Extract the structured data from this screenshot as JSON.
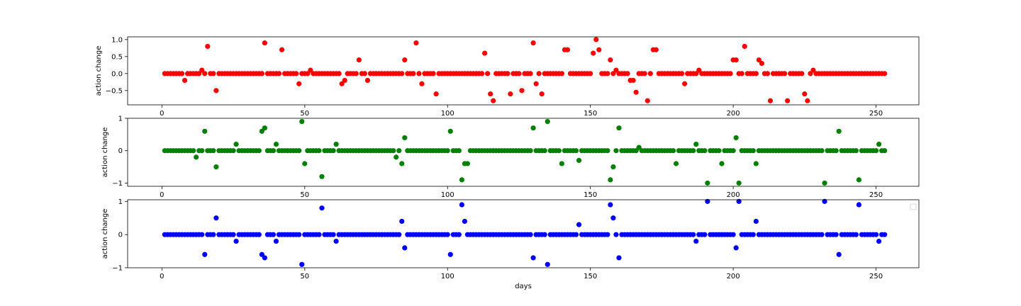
{
  "chart_data": [
    {
      "type": "scatter",
      "color": "#ff0000",
      "ylabel": "action change",
      "xlabel": "",
      "xlim": [
        -12,
        265
      ],
      "ylim": [
        -0.92,
        1.08
      ],
      "xticks": [
        0,
        50,
        100,
        150,
        200,
        250
      ],
      "xtick_labels": [
        "0",
        "50",
        "100",
        "150",
        "200",
        "250"
      ],
      "yticks": [
        -0.5,
        0.0,
        0.5,
        1.0
      ],
      "ytick_labels": [
        "−0.5",
        "0.0",
        "0.5",
        "1.0"
      ],
      "points": [
        [
          8,
          -0.2
        ],
        [
          14,
          0.1
        ],
        [
          16,
          0.8
        ],
        [
          19,
          -0.5
        ],
        [
          36,
          0.9
        ],
        [
          42,
          0.7
        ],
        [
          48,
          -0.3
        ],
        [
          52,
          0.1
        ],
        [
          63,
          -0.3
        ],
        [
          64,
          -0.2
        ],
        [
          69,
          0.4
        ],
        [
          72,
          -0.2
        ],
        [
          85,
          0.4
        ],
        [
          89,
          0.9
        ],
        [
          91,
          -0.3
        ],
        [
          96,
          -0.6
        ],
        [
          113,
          0.6
        ],
        [
          115,
          -0.6
        ],
        [
          116,
          -0.8
        ],
        [
          122,
          -0.6
        ],
        [
          126,
          -0.5
        ],
        [
          130,
          0.9
        ],
        [
          131,
          -0.3
        ],
        [
          133,
          -0.6
        ],
        [
          141,
          0.7
        ],
        [
          142,
          0.7
        ],
        [
          151,
          0.6
        ],
        [
          152,
          1.0
        ],
        [
          153,
          0.7
        ],
        [
          157,
          0.4
        ],
        [
          159,
          0.1
        ],
        [
          164,
          -0.2
        ],
        [
          165,
          -0.2
        ],
        [
          166,
          -0.55
        ],
        [
          170,
          -0.8
        ],
        [
          172,
          0.7
        ],
        [
          173,
          0.7
        ],
        [
          183,
          -0.3
        ],
        [
          188,
          0.1
        ],
        [
          200,
          0.4
        ],
        [
          201,
          0.4
        ],
        [
          204,
          0.8
        ],
        [
          209,
          0.4
        ],
        [
          210,
          0.3
        ],
        [
          213,
          -0.8
        ],
        [
          219,
          -0.8
        ],
        [
          225,
          -0.6
        ],
        [
          226,
          -0.8
        ],
        [
          228,
          0.1
        ]
      ]
    },
    {
      "type": "scatter",
      "color": "#008000",
      "ylabel": "action change",
      "xlabel": "",
      "xlim": [
        -12,
        265
      ],
      "ylim": [
        -1.1,
        1.0
      ],
      "xticks": [
        0,
        50,
        100,
        150,
        200,
        250
      ],
      "xtick_labels": [
        "0",
        "50",
        "100",
        "150",
        "200",
        "250"
      ],
      "yticks": [
        -1,
        0,
        1
      ],
      "ytick_labels": [
        "−1",
        "0",
        "1"
      ],
      "points": [
        [
          12,
          -0.2
        ],
        [
          15,
          0.6
        ],
        [
          19,
          -0.5
        ],
        [
          26,
          0.2
        ],
        [
          35,
          0.6
        ],
        [
          36,
          0.7
        ],
        [
          40,
          0.2
        ],
        [
          49,
          0.9
        ],
        [
          50,
          -0.4
        ],
        [
          56,
          -0.8
        ],
        [
          61,
          0.2
        ],
        [
          82,
          -0.2
        ],
        [
          84,
          -0.4
        ],
        [
          85,
          0.4
        ],
        [
          101,
          0.6
        ],
        [
          105,
          -0.9
        ],
        [
          106,
          -0.4
        ],
        [
          107,
          -0.4
        ],
        [
          130,
          0.7
        ],
        [
          135,
          0.9
        ],
        [
          140,
          -0.4
        ],
        [
          146,
          -0.3
        ],
        [
          157,
          -0.9
        ],
        [
          158,
          -0.5
        ],
        [
          160,
          0.7
        ],
        [
          167,
          0.1
        ],
        [
          180,
          -0.4
        ],
        [
          187,
          0.2
        ],
        [
          191,
          -1.0
        ],
        [
          196,
          -0.4
        ],
        [
          201,
          0.4
        ],
        [
          202,
          -1.0
        ],
        [
          208,
          -0.4
        ],
        [
          232,
          -1.0
        ],
        [
          237,
          0.6
        ],
        [
          244,
          -0.9
        ],
        [
          251,
          0.2
        ]
      ]
    },
    {
      "type": "scatter",
      "color": "#0000ff",
      "ylabel": "action change",
      "xlabel": "days",
      "xlim": [
        -12,
        265
      ],
      "ylim": [
        -1.0,
        1.05
      ],
      "xticks": [
        0,
        50,
        100,
        150,
        200,
        250
      ],
      "xtick_labels": [
        "0",
        "50",
        "100",
        "150",
        "200",
        "250"
      ],
      "yticks": [
        -1,
        0,
        1
      ],
      "ytick_labels": [
        "−1",
        "0",
        "1"
      ],
      "legend": "top-right (empty)",
      "points": [
        [
          15,
          -0.6
        ],
        [
          19,
          0.5
        ],
        [
          26,
          -0.2
        ],
        [
          35,
          -0.6
        ],
        [
          36,
          -0.7
        ],
        [
          40,
          -0.2
        ],
        [
          49,
          -0.9
        ],
        [
          56,
          0.8
        ],
        [
          61,
          -0.2
        ],
        [
          84,
          0.4
        ],
        [
          85,
          -0.4
        ],
        [
          101,
          -0.6
        ],
        [
          105,
          0.9
        ],
        [
          106,
          0.4
        ],
        [
          130,
          -0.7
        ],
        [
          135,
          -0.9
        ],
        [
          146,
          0.3
        ],
        [
          157,
          0.9
        ],
        [
          158,
          0.5
        ],
        [
          160,
          -0.7
        ],
        [
          187,
          -0.2
        ],
        [
          191,
          1.0
        ],
        [
          201,
          -0.4
        ],
        [
          202,
          1.0
        ],
        [
          208,
          0.4
        ],
        [
          232,
          1.0
        ],
        [
          237,
          -0.6
        ],
        [
          244,
          0.9
        ],
        [
          251,
          -0.2
        ]
      ]
    }
  ],
  "x_range": [
    1,
    253
  ]
}
